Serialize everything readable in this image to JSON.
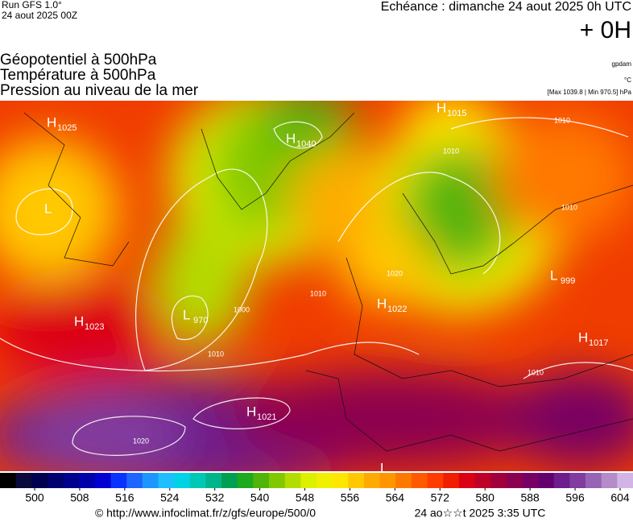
{
  "header": {
    "run": "Run GFS 1.0°",
    "date": "24 aout 2025 00Z",
    "echeance": "Echéance : dimanche 24 aout 2025 0h UTC",
    "offset": "+ 0H"
  },
  "titles": [
    "Géopotentiel à 500hPa",
    "Température à 500hPa",
    "Pression au niveau de la mer"
  ],
  "units": [
    "gpdam",
    "°C",
    "[Max 1039.8 | Min 970.5] hPa"
  ],
  "map": {
    "centers": [
      {
        "kind": "H",
        "value": "1025"
      },
      {
        "kind": "L",
        "value": null
      },
      {
        "kind": "H",
        "value": "1040"
      },
      {
        "kind": "H",
        "value": "1015"
      },
      {
        "kind": "L",
        "value": "999"
      },
      {
        "kind": "H",
        "value": "1023"
      },
      {
        "kind": "L",
        "value": "970"
      },
      {
        "kind": "H",
        "value": "1022"
      },
      {
        "kind": "H",
        "value": "1017"
      },
      {
        "kind": "H",
        "value": "1021"
      },
      {
        "kind": "L",
        "value": null
      }
    ],
    "contour_labels": [
      "1010",
      "1010",
      "1010",
      "1010",
      "1010",
      "1010",
      "1000",
      "1020",
      "1020"
    ]
  },
  "legend": {
    "ticks": [
      500,
      508,
      516,
      524,
      532,
      540,
      548,
      556,
      564,
      572,
      580,
      588,
      596,
      604
    ],
    "colors": [
      "#000000",
      "#0a0a3c",
      "#000050",
      "#00006e",
      "#00008c",
      "#0000aa",
      "#0000d2",
      "#0a32ff",
      "#1e64ff",
      "#1e96ff",
      "#1ebeff",
      "#00d2e6",
      "#00c8b4",
      "#00b48c",
      "#00a050",
      "#1eaa1e",
      "#50b40a",
      "#82c800",
      "#b4dc00",
      "#dcf000",
      "#f0f000",
      "#ffe600",
      "#ffc800",
      "#ffaa00",
      "#ff9600",
      "#ff7800",
      "#ff5a00",
      "#ff3c00",
      "#f01e00",
      "#dc0014",
      "#be0028",
      "#a0003c",
      "#8c0050",
      "#780064",
      "#64006e",
      "#6e1e8c",
      "#823ca0",
      "#9664b4",
      "#b48cc8",
      "#d2b4e6"
    ]
  },
  "footer": {
    "source": "© http://www.infoclimat.fr/z/gfs/europe/500/0",
    "time": "24 ao☆☆t 2025  3:35 UTC"
  }
}
